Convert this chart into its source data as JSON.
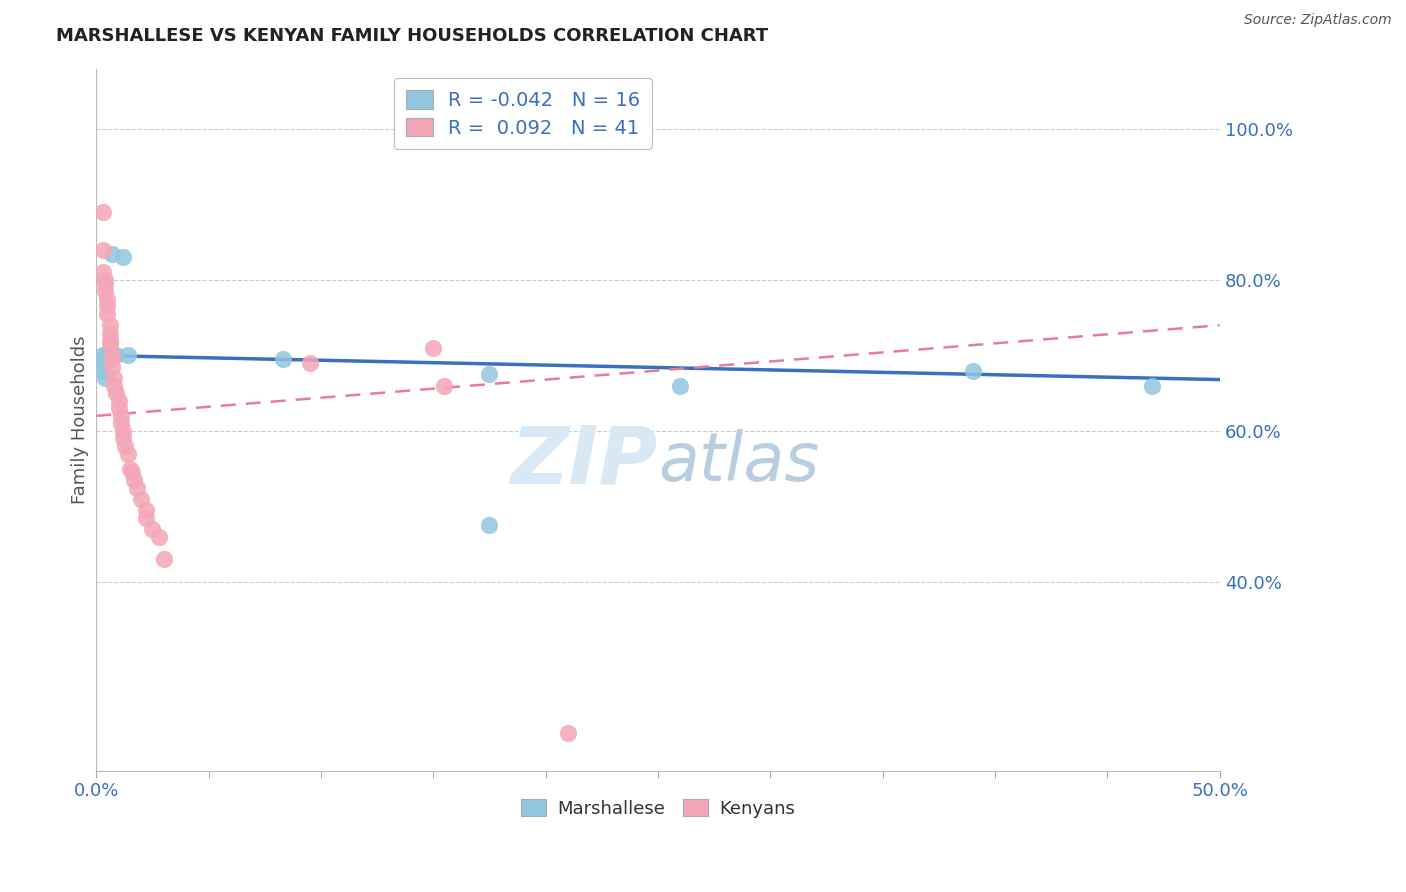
{
  "title": "MARSHALLESE VS KENYAN FAMILY HOUSEHOLDS CORRELATION CHART",
  "source": "Source: ZipAtlas.com",
  "ylabel": "Family Households",
  "xlim": [
    0.0,
    0.5
  ],
  "ylim": [
    0.15,
    1.08
  ],
  "xticks": [
    0.0,
    0.05,
    0.1,
    0.15,
    0.2,
    0.25,
    0.3,
    0.35,
    0.4,
    0.45,
    0.5
  ],
  "yticks_right": [
    0.4,
    0.6,
    0.8,
    1.0
  ],
  "ytick_labels_right": [
    "40.0%",
    "60.0%",
    "80.0%",
    "100.0%"
  ],
  "blue_R": -0.042,
  "blue_N": 16,
  "pink_R": 0.092,
  "pink_N": 41,
  "blue_color": "#92C5DE",
  "pink_color": "#F4A6B8",
  "blue_line_color": "#3A6EBF",
  "pink_line_color": "#E87A9A",
  "grid_color": "#CCCCCC",
  "watermark_color": "#D8E8F5",
  "blue_x": [
    0.003,
    0.005,
    0.007,
    0.009,
    0.012,
    0.014,
    0.003,
    0.003,
    0.003,
    0.004,
    0.083,
    0.175,
    0.26,
    0.39,
    0.47,
    0.175
  ],
  "blue_y": [
    0.7,
    0.7,
    0.835,
    0.7,
    0.83,
    0.7,
    0.695,
    0.69,
    0.68,
    0.67,
    0.695,
    0.675,
    0.66,
    0.68,
    0.66,
    0.475
  ],
  "pink_x": [
    0.003,
    0.003,
    0.003,
    0.004,
    0.004,
    0.004,
    0.005,
    0.005,
    0.005,
    0.006,
    0.006,
    0.006,
    0.006,
    0.007,
    0.007,
    0.007,
    0.008,
    0.008,
    0.009,
    0.01,
    0.01,
    0.011,
    0.011,
    0.012,
    0.012,
    0.013,
    0.014,
    0.015,
    0.016,
    0.017,
    0.018,
    0.02,
    0.022,
    0.022,
    0.025,
    0.028,
    0.03,
    0.095,
    0.15,
    0.155,
    0.21
  ],
  "pink_y": [
    0.89,
    0.84,
    0.81,
    0.8,
    0.795,
    0.785,
    0.775,
    0.765,
    0.755,
    0.74,
    0.73,
    0.72,
    0.715,
    0.7,
    0.695,
    0.685,
    0.67,
    0.66,
    0.65,
    0.64,
    0.63,
    0.62,
    0.61,
    0.6,
    0.59,
    0.58,
    0.57,
    0.55,
    0.545,
    0.535,
    0.525,
    0.51,
    0.495,
    0.485,
    0.47,
    0.46,
    0.43,
    0.69,
    0.71,
    0.66,
    0.2
  ],
  "blue_line_x": [
    0.0,
    0.5
  ],
  "blue_line_y": [
    0.7,
    0.668
  ],
  "pink_line_x": [
    0.0,
    0.5
  ],
  "pink_line_y": [
    0.62,
    0.74
  ]
}
